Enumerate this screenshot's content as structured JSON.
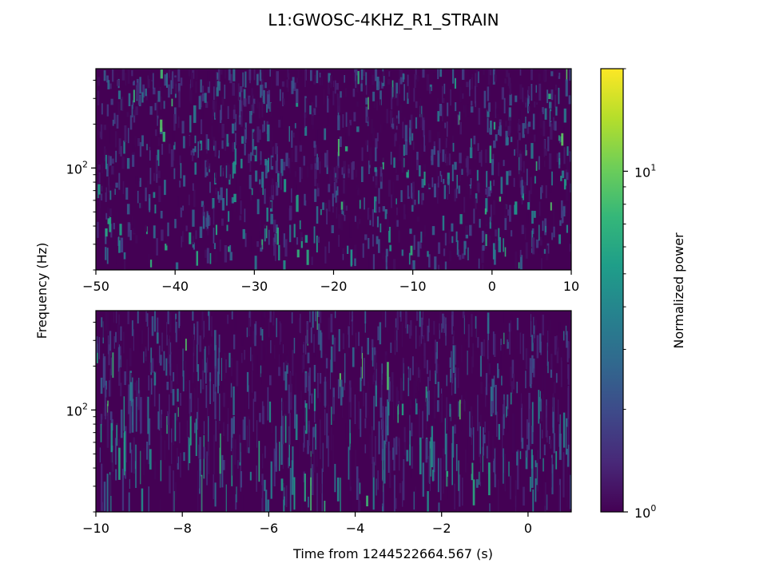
{
  "chart_data": {
    "type": "heatmap",
    "title": "L1:GWOSC-4KHZ_R1_STRAIN",
    "ylabel": "Frequency (Hz)",
    "xlabel": "Time from 1244522664.567 (s)",
    "colorbar": {
      "label": "Normalized power",
      "scale": "log",
      "range": [
        1,
        20
      ],
      "colormap": "viridis",
      "ticks": [
        {
          "value": 1,
          "base": "10",
          "exp": "0"
        },
        {
          "value": 10,
          "base": "10",
          "exp": "1"
        }
      ]
    },
    "panels": [
      {
        "name": "top",
        "xlim": [
          -50,
          10
        ],
        "ylim": [
          20,
          480
        ],
        "yscale": "log",
        "xticks": [
          {
            "value": -50,
            "label": "−50"
          },
          {
            "value": -40,
            "label": "−40"
          },
          {
            "value": -30,
            "label": "−30"
          },
          {
            "value": -20,
            "label": "−20"
          },
          {
            "value": -10,
            "label": "−10"
          },
          {
            "value": 0,
            "label": "0"
          },
          {
            "value": 10,
            "label": "10"
          }
        ],
        "yticks": [
          {
            "value": 100,
            "base": "10",
            "exp": "2"
          }
        ]
      },
      {
        "name": "bottom",
        "xlim": [
          -10,
          1
        ],
        "ylim": [
          20,
          480
        ],
        "yscale": "log",
        "xticks": [
          {
            "value": -10,
            "label": "−10"
          },
          {
            "value": -8,
            "label": "−8"
          },
          {
            "value": -6,
            "label": "−6"
          },
          {
            "value": -4,
            "label": "−4"
          },
          {
            "value": -2,
            "label": "−2"
          },
          {
            "value": 0,
            "label": "0"
          }
        ],
        "yticks": [
          {
            "value": 100,
            "base": "10",
            "exp": "2"
          }
        ]
      }
    ]
  },
  "colors": {
    "viridis_stops": [
      "#440154",
      "#482878",
      "#3e4989",
      "#31688e",
      "#26828e",
      "#1f9e89",
      "#35b779",
      "#6ece58",
      "#b5de2b",
      "#fde725"
    ]
  }
}
